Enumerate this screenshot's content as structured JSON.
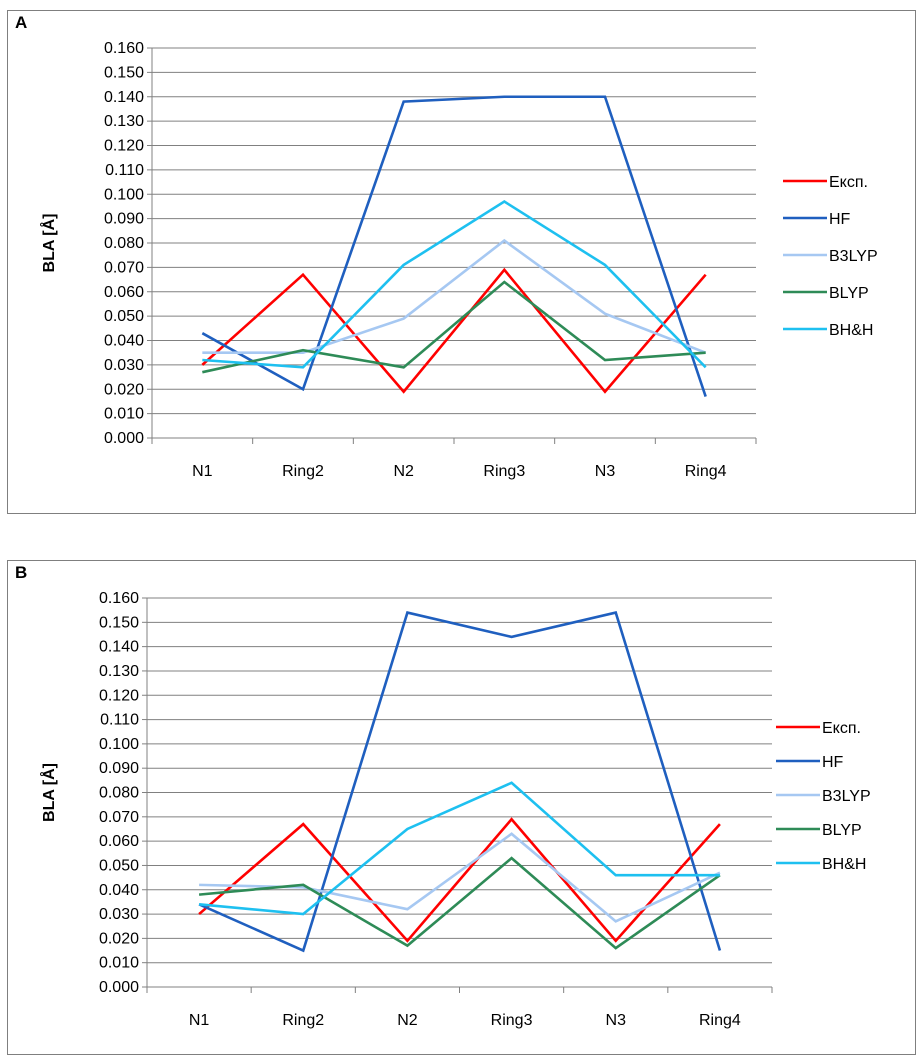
{
  "chart_data": [
    {
      "panel": "A",
      "type": "line",
      "ylabel": "BLA [Å]",
      "ylim": [
        0,
        0.16
      ],
      "ytick_step": 0.01,
      "yticks": [
        "0.000",
        "0.010",
        "0.020",
        "0.030",
        "0.040",
        "0.050",
        "0.060",
        "0.070",
        "0.080",
        "0.090",
        "0.100",
        "0.110",
        "0.120",
        "0.130",
        "0.140",
        "0.150",
        "0.160"
      ],
      "grid": true,
      "legend_position": "right",
      "categories": [
        "N1",
        "Ring2",
        "N2",
        "Ring3",
        "N3",
        "Ring4"
      ],
      "series": [
        {
          "name": "Експ.",
          "color": "#ff0000",
          "values": [
            0.03,
            0.067,
            0.019,
            0.069,
            0.019,
            0.067
          ]
        },
        {
          "name": "HF",
          "color": "#1f5fbf",
          "values": [
            0.043,
            0.02,
            0.138,
            0.14,
            0.14,
            0.017
          ]
        },
        {
          "name": "B3LYP",
          "color": "#a6c8f2",
          "values": [
            0.035,
            0.035,
            0.049,
            0.081,
            0.051,
            0.035
          ]
        },
        {
          "name": "BLYP",
          "color": "#2e8b57",
          "values": [
            0.027,
            0.036,
            0.029,
            0.064,
            0.032,
            0.035
          ]
        },
        {
          "name": "BH&H",
          "color": "#1ec0f0",
          "values": [
            0.032,
            0.029,
            0.071,
            0.097,
            0.071,
            0.029
          ]
        }
      ]
    },
    {
      "panel": "B",
      "type": "line",
      "ylabel": "BLA [Å]",
      "ylim": [
        0,
        0.16
      ],
      "ytick_step": 0.01,
      "yticks": [
        "0.000",
        "0.010",
        "0.020",
        "0.030",
        "0.040",
        "0.050",
        "0.060",
        "0.070",
        "0.080",
        "0.090",
        "0.100",
        "0.110",
        "0.120",
        "0.130",
        "0.140",
        "0.150",
        "0.160"
      ],
      "grid": true,
      "legend_position": "right",
      "categories": [
        "N1",
        "Ring2",
        "N2",
        "Ring3",
        "N3",
        "Ring4"
      ],
      "series": [
        {
          "name": "Експ.",
          "color": "#ff0000",
          "values": [
            0.03,
            0.067,
            0.019,
            0.069,
            0.019,
            0.067
          ]
        },
        {
          "name": "HF",
          "color": "#1f5fbf",
          "values": [
            0.034,
            0.015,
            0.154,
            0.144,
            0.154,
            0.015
          ]
        },
        {
          "name": "B3LYP",
          "color": "#a6c8f2",
          "values": [
            0.042,
            0.041,
            0.032,
            0.063,
            0.027,
            0.047
          ]
        },
        {
          "name": "BLYP",
          "color": "#2e8b57",
          "values": [
            0.038,
            0.042,
            0.017,
            0.053,
            0.016,
            0.046
          ]
        },
        {
          "name": "BH&H",
          "color": "#1ec0f0",
          "values": [
            0.034,
            0.03,
            0.065,
            0.084,
            0.046,
            0.046
          ]
        }
      ]
    }
  ]
}
